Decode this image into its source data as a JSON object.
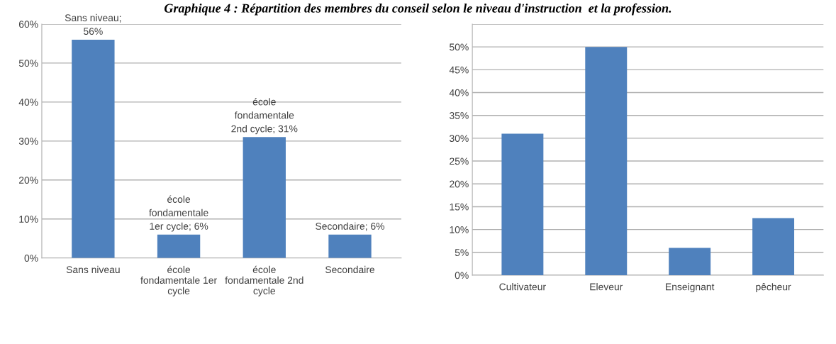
{
  "chart_data": [
    {
      "type": "bar",
      "title": "Graphique 4 : Répartition des membres du conseil selon le niveau d'instruction  et la profession.",
      "categories": [
        "Sans niveau",
        "école\nfondamentale 1er\ncycle",
        "école\nfondamentale 2nd\ncycle",
        "Secondaire"
      ],
      "values": [
        56,
        6,
        31,
        6
      ],
      "color": "#4f81bd",
      "value_labels": [
        "Sans niveau;\n56%",
        "école\nfondamentale\n1er cycle; 6%",
        "école\nfondamentale\n2nd cycle; 31%",
        "Secondaire; 6%"
      ],
      "ylim": [
        0,
        60
      ],
      "yticks": [
        {
          "value": 0,
          "label": "0%"
        },
        {
          "value": 10,
          "label": "10%"
        },
        {
          "value": 20,
          "label": "20%"
        },
        {
          "value": 30,
          "label": "30%"
        },
        {
          "value": 40,
          "label": "40%"
        },
        {
          "value": 50,
          "label": "50%"
        },
        {
          "value": 60,
          "label": "60%"
        }
      ],
      "grid": "y"
    },
    {
      "type": "bar",
      "categories": [
        "Cultivateur",
        "Eleveur",
        "Enseignant",
        "pêcheur"
      ],
      "values": [
        31,
        50,
        6,
        12.5
      ],
      "color": "#4f81bd",
      "ylim": [
        0,
        55
      ],
      "yticks": [
        {
          "value": 0,
          "label": "0%"
        },
        {
          "value": 5,
          "label": "5%"
        },
        {
          "value": 10,
          "label": "10%"
        },
        {
          "value": 15,
          "label": "15%"
        },
        {
          "value": 20,
          "label": "20%"
        },
        {
          "value": 25,
          "label": "25%"
        },
        {
          "value": 30,
          "label": "30%"
        },
        {
          "value": 35,
          "label": "35%"
        },
        {
          "value": 40,
          "label": "40%"
        },
        {
          "value": 45,
          "label": "45%"
        },
        {
          "value": 50,
          "label": "50%"
        },
        {
          "value": 55,
          "label": null
        }
      ],
      "grid": "y"
    }
  ]
}
